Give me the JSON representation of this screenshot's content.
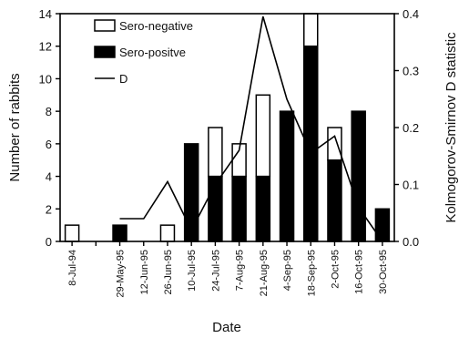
{
  "chart_data": {
    "type": "bar",
    "xlabel": "Date",
    "ylabel": "Number of rabbits",
    "y2label": "Kolmogorov-Smirnov D statistic",
    "ylim": [
      0,
      14
    ],
    "y2lim": [
      0,
      0.4
    ],
    "yticks": [
      0,
      2,
      4,
      6,
      8,
      10,
      12,
      14
    ],
    "y2ticks": [
      "0.0",
      "0.1",
      "0.2",
      "0.3",
      "0.4"
    ],
    "categories": [
      "8-Jul-94",
      "",
      "29-May-95",
      "12-Jun-95",
      "26-Jun-95",
      "10-Jul-95",
      "24-Jul-95",
      "7-Aug-95",
      "21-Aug-95",
      "4-Sep-95",
      "18-Sep-95",
      "2-Oct-95",
      "16-Oct-95",
      "30-Oct-95"
    ],
    "series": [
      {
        "name": "Sero-positve",
        "values": [
          0,
          0,
          1,
          0,
          0,
          6,
          4,
          4,
          4,
          8,
          12,
          5,
          8,
          2
        ],
        "color": "#000000"
      },
      {
        "name": "Sero-negative",
        "values": [
          1,
          0,
          0,
          0,
          1,
          0,
          3,
          2,
          5,
          0,
          2,
          2,
          0,
          0
        ],
        "color": "#ffffff"
      }
    ],
    "line": {
      "name": "D",
      "values": [
        null,
        null,
        0.04,
        0.04,
        0.105,
        0.02,
        0.1,
        0.16,
        0.395,
        0.25,
        0.155,
        0.185,
        0.06,
        0.0
      ]
    },
    "legend_position": "top-left",
    "grid": false
  }
}
